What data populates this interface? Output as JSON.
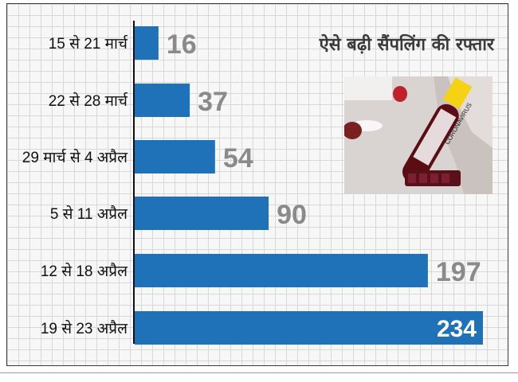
{
  "chart_data": {
    "type": "bar",
    "orientation": "horizontal",
    "title": "ऐसे बढ़ी सैंपलिंग की रफ्तार",
    "categories": [
      "15 से 21 मार्च",
      "22 से 28 मार्च",
      "29 मार्च से 4 अप्रैल",
      "5 से 11 अप्रैल",
      "12 से 18 अप्रैल",
      "19  से 23 अप्रैल"
    ],
    "values": [
      16,
      37,
      54,
      90,
      197,
      234
    ],
    "value_labels": [
      "16",
      "37",
      "54",
      "90",
      "197",
      "234"
    ],
    "xlim": [
      0,
      234
    ],
    "grid": true,
    "legend": "none",
    "colors": {
      "bar": "#1f72b8",
      "value_text": "#8a8a8a",
      "inside_value_text": "#ffffff",
      "grid": "#d8d8d8"
    }
  },
  "image": {
    "icon": "coronavirus-test-tube-photo",
    "tube_label": "CORONAVIRUS"
  }
}
